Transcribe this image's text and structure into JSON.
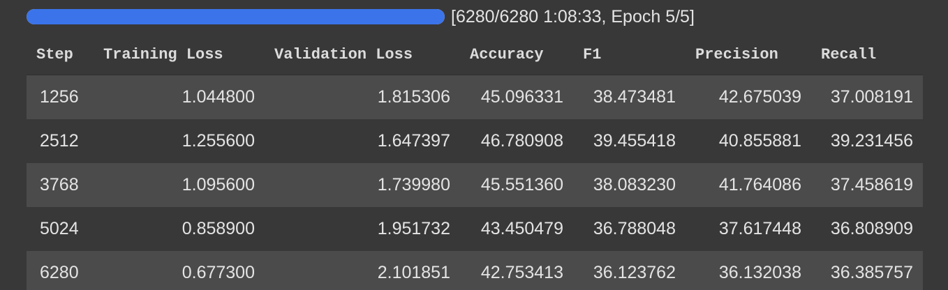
{
  "progress": {
    "fraction": 1.0,
    "status_text": "[6280/6280 1:08:33, Epoch 5/5]",
    "bar_color": "#3b74ea"
  },
  "table": {
    "headers": [
      "Step",
      "Training Loss",
      "Validation Loss",
      "Accuracy",
      "F1",
      "Precision",
      "Recall"
    ],
    "rows": [
      [
        "1256",
        "1.044800",
        "1.815306",
        "45.096331",
        "38.473481",
        "42.675039",
        "37.008191"
      ],
      [
        "2512",
        "1.255600",
        "1.647397",
        "46.780908",
        "39.455418",
        "40.855881",
        "39.231456"
      ],
      [
        "3768",
        "1.095600",
        "1.739980",
        "45.551360",
        "38.083230",
        "41.764086",
        "37.458619"
      ],
      [
        "5024",
        "0.858900",
        "1.951732",
        "43.450479",
        "36.788048",
        "37.617448",
        "36.808909"
      ],
      [
        "6280",
        "0.677300",
        "2.101851",
        "42.753413",
        "36.123762",
        "36.132038",
        "36.385757"
      ]
    ]
  }
}
